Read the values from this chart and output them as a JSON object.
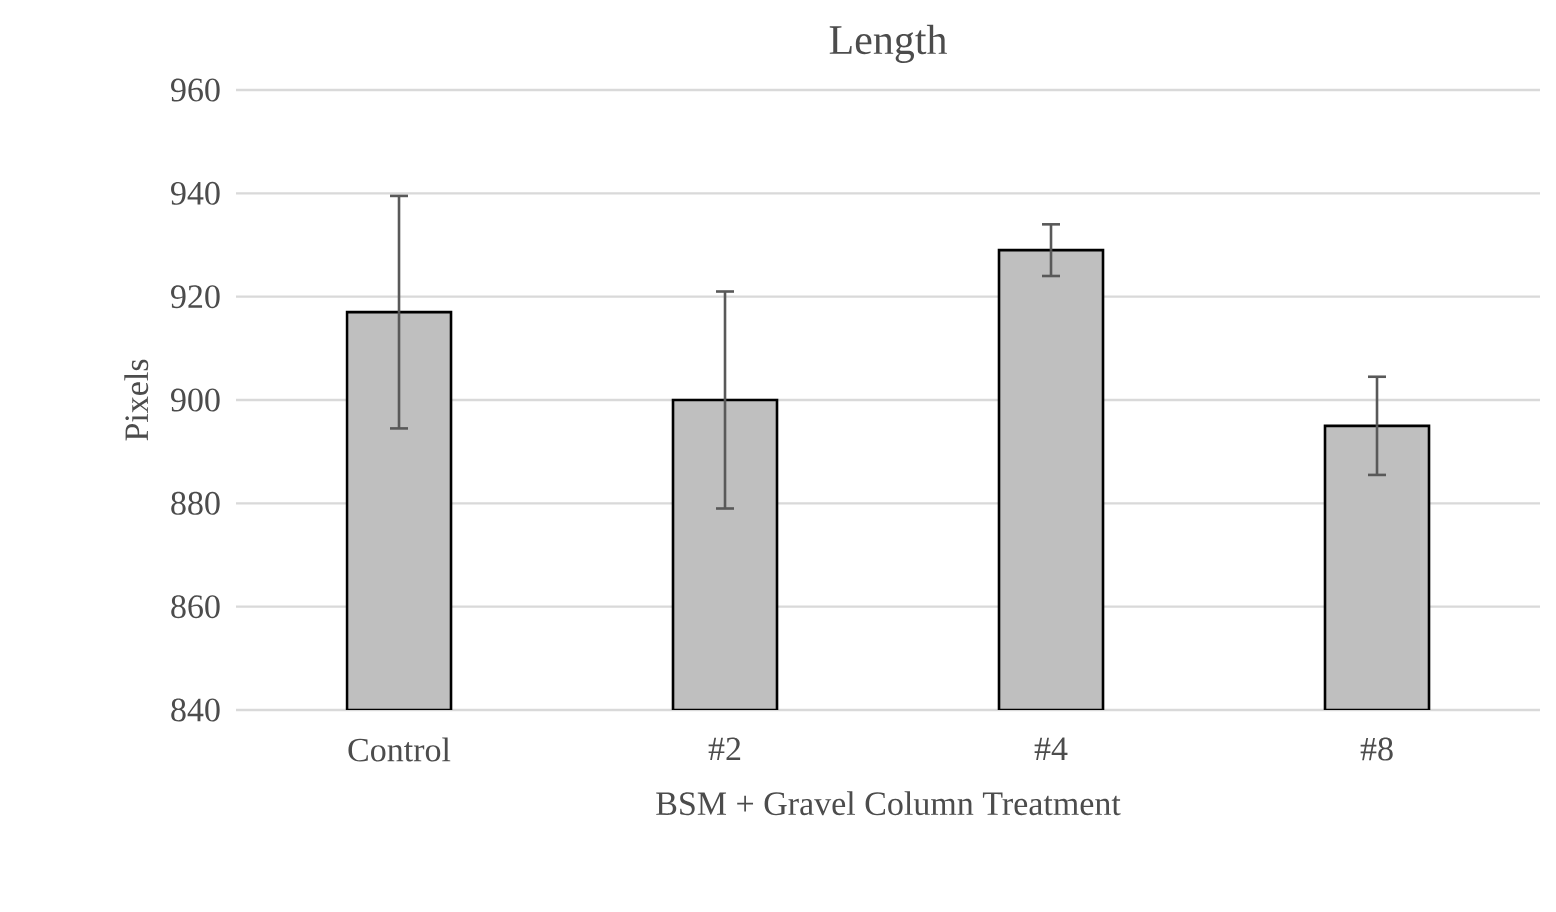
{
  "chart_data": {
    "type": "bar",
    "title": "Length",
    "xlabel": "BSM + Gravel Column Treatment",
    "ylabel": "Pixels",
    "categories": [
      "Control",
      "#2",
      "#4",
      "#8"
    ],
    "values": [
      917,
      900,
      929,
      895
    ],
    "errors": [
      22.5,
      21,
      5,
      9.5
    ],
    "color": "#bfbfbf",
    "ylim": [
      840,
      960
    ],
    "yticks": [
      840,
      860,
      880,
      900,
      920,
      940,
      960
    ],
    "grid": "y"
  }
}
